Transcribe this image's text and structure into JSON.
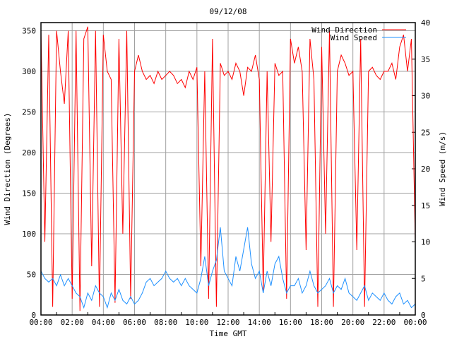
{
  "chart_data": {
    "type": "line",
    "title": "09/12/08",
    "xlabel": "Time GMT",
    "ylabel": "Wind Direction (Degrees)",
    "y2label": "Wind Speed (m/s)",
    "xlim_hours": [
      0,
      24
    ],
    "ylim": [
      0,
      360
    ],
    "y2lim": [
      0,
      40
    ],
    "x_ticks": [
      "00:00",
      "02:00",
      "04:00",
      "06:00",
      "08:00",
      "10:00",
      "12:00",
      "14:00",
      "16:00",
      "18:00",
      "20:00",
      "22:00",
      "00:00"
    ],
    "y_ticks": [
      0,
      50,
      100,
      150,
      200,
      250,
      300,
      350
    ],
    "y2_ticks": [
      0,
      5,
      10,
      15,
      20,
      25,
      30,
      35,
      40
    ],
    "grid": true,
    "legend": "top-right",
    "x_step_hours": 0.25,
    "series": [
      {
        "name": "Wind Direction",
        "axis": "left",
        "color": "#ff0000",
        "values": [
          350,
          90,
          345,
          10,
          350,
          300,
          260,
          350,
          20,
          350,
          5,
          340,
          355,
          60,
          350,
          10,
          345,
          300,
          290,
          15,
          340,
          100,
          350,
          20,
          300,
          320,
          300,
          290,
          295,
          285,
          300,
          290,
          295,
          300,
          295,
          285,
          290,
          280,
          300,
          290,
          305,
          60,
          300,
          20,
          340,
          10,
          310,
          295,
          300,
          290,
          310,
          300,
          270,
          305,
          300,
          320,
          290,
          30,
          300,
          90,
          310,
          295,
          300,
          20,
          340,
          310,
          330,
          300,
          80,
          340,
          290,
          10,
          330,
          100,
          350,
          10,
          300,
          320,
          310,
          295,
          300,
          80,
          340,
          10,
          300,
          305,
          295,
          290,
          300,
          300,
          310,
          290,
          330,
          345,
          300,
          340,
          90
        ]
      },
      {
        "name": "Wind Speed",
        "axis": "right",
        "color": "#1e90ff",
        "values": [
          6,
          5,
          4.5,
          5,
          4,
          5.5,
          4,
          5,
          4,
          3,
          2.5,
          1,
          3,
          2,
          4,
          3,
          2.5,
          1,
          3,
          2,
          3.5,
          2,
          1.5,
          2.5,
          1.5,
          2,
          3,
          4.5,
          5,
          4,
          4.5,
          5,
          6,
          5,
          4.5,
          5,
          4,
          5,
          4,
          3.5,
          3,
          5,
          8,
          4,
          6,
          7.5,
          12,
          6,
          5,
          4,
          8,
          6,
          9,
          12,
          7,
          5,
          6,
          3,
          6,
          4,
          7,
          8,
          5,
          3,
          4,
          4,
          5,
          3,
          4,
          6,
          4,
          3,
          3.5,
          4,
          5,
          3,
          4,
          3.5,
          5,
          3,
          2.5,
          2,
          3,
          4,
          2,
          3,
          2.5,
          2,
          3,
          2,
          1.5,
          2.5,
          3,
          1.5,
          2,
          1,
          1.5
        ]
      }
    ]
  }
}
